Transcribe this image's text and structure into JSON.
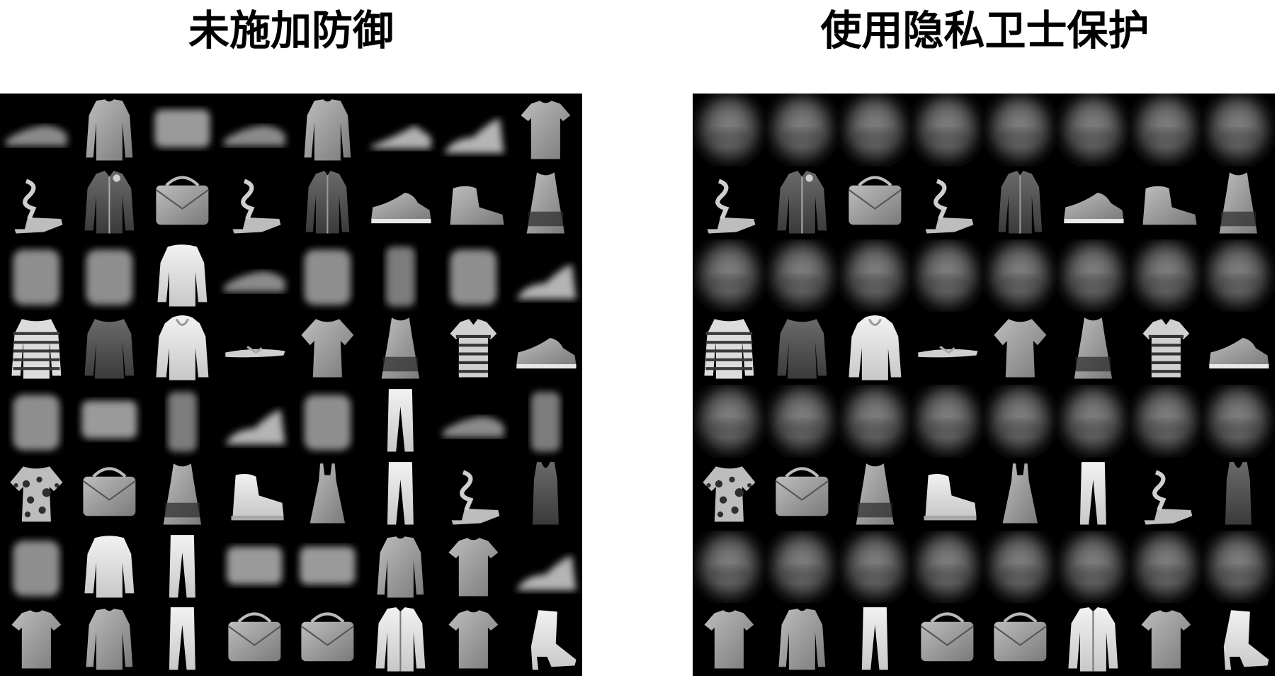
{
  "panels": [
    {
      "id": "left",
      "title": "未施加防御",
      "rows": [
        [
          "blur-shoe",
          "longsleeve",
          "blur-bag",
          "blur-shoe",
          "longsleeve",
          "blur-sneaker",
          "blur-boot",
          "tshirt"
        ],
        [
          "sandal",
          "jacket",
          "bag",
          "sandal",
          "shirt",
          "sneaker",
          "ankle-boot",
          "dress"
        ],
        [
          "blur-top",
          "blur-top",
          "pullover",
          "blur-shoe",
          "blur-top",
          "blur-dress",
          "blur-top",
          "blur-boot"
        ],
        [
          "striped-shirt",
          "dark-top",
          "hoodie",
          "flat-sandal",
          "blouse",
          "dress",
          "striped-polo",
          "sneaker"
        ],
        [
          "blur-top",
          "blur-bag",
          "blur-dress",
          "blur-boot",
          "blur-top",
          "trousers",
          "blur-shoe",
          "blur-dress"
        ],
        [
          "patterned-shirt",
          "bag",
          "dress",
          "high-top",
          "sundress",
          "trousers",
          "sandal",
          "tank-top"
        ],
        [
          "blur-top",
          "pullover",
          "trousers",
          "blur-bag",
          "blur-bag",
          "longsleeve",
          "tshirt",
          "blur-boot"
        ],
        [
          "tshirt",
          "longsleeve",
          "trousers",
          "bag",
          "bag",
          "zip-jacket",
          "tshirt",
          "heeled-boot"
        ]
      ]
    },
    {
      "id": "right",
      "title": "使用隐私卫士保护",
      "rows": [
        [
          "blob",
          "blob",
          "blob",
          "blob",
          "blob",
          "blob",
          "blob",
          "blob"
        ],
        [
          "sandal",
          "jacket",
          "bag",
          "sandal",
          "shirt",
          "sneaker",
          "ankle-boot",
          "dress"
        ],
        [
          "blob",
          "blob",
          "blob",
          "blob",
          "blob",
          "blob",
          "blob",
          "blob"
        ],
        [
          "striped-shirt",
          "dark-top",
          "hoodie",
          "flat-sandal",
          "blouse",
          "dress",
          "striped-polo",
          "sneaker"
        ],
        [
          "blob",
          "blob",
          "blob",
          "blob",
          "blob",
          "blob",
          "blob",
          "blob"
        ],
        [
          "patterned-shirt",
          "bag",
          "dress",
          "high-top",
          "sundress",
          "trousers",
          "sandal",
          "tank-top"
        ],
        [
          "blob",
          "blob",
          "blob",
          "blob",
          "blob",
          "blob",
          "blob",
          "blob"
        ],
        [
          "tshirt",
          "longsleeve",
          "trousers",
          "bag",
          "bag",
          "zip-jacket",
          "tshirt",
          "heeled-boot"
        ]
      ]
    }
  ]
}
